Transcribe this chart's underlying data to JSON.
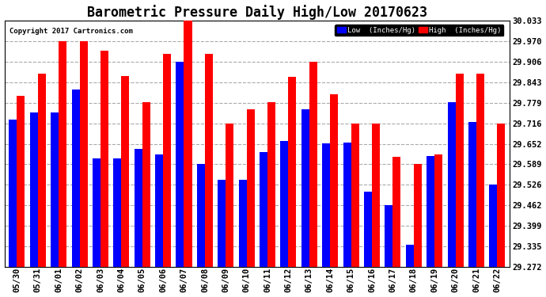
{
  "title": "Barometric Pressure Daily High/Low 20170623",
  "copyright": "Copyright 2017 Cartronics.com",
  "dates": [
    "05/30",
    "05/31",
    "06/01",
    "06/02",
    "06/03",
    "06/04",
    "06/05",
    "06/06",
    "06/07",
    "06/08",
    "06/09",
    "06/10",
    "06/11",
    "06/12",
    "06/13",
    "06/14",
    "06/15",
    "06/16",
    "06/17",
    "06/18",
    "06/19",
    "06/20",
    "06/21",
    "06/22"
  ],
  "low_values": [
    29.726,
    29.75,
    29.75,
    29.82,
    29.606,
    29.606,
    29.637,
    29.62,
    29.906,
    29.59,
    29.54,
    29.54,
    29.626,
    29.66,
    29.76,
    29.653,
    29.655,
    29.505,
    29.462,
    29.34,
    29.614,
    29.78,
    29.72,
    29.526
  ],
  "high_values": [
    29.8,
    29.87,
    29.97,
    29.97,
    29.94,
    29.863,
    29.78,
    29.93,
    30.033,
    29.93,
    29.716,
    29.76,
    29.78,
    29.86,
    29.906,
    29.806,
    29.716,
    29.716,
    29.612,
    29.589,
    29.62,
    29.869,
    29.869,
    29.716
  ],
  "low_color": "#0000ff",
  "high_color": "#ff0000",
  "bg_color": "#ffffff",
  "grid_color": "#aaaaaa",
  "yticks": [
    29.272,
    29.335,
    29.399,
    29.462,
    29.526,
    29.589,
    29.652,
    29.716,
    29.779,
    29.843,
    29.906,
    29.97,
    30.033
  ],
  "ymin": 29.272,
  "ymax": 30.033,
  "title_fontsize": 12,
  "legend_label_low": "Low  (Inches/Hg)",
  "legend_label_high": "High  (Inches/Hg)"
}
